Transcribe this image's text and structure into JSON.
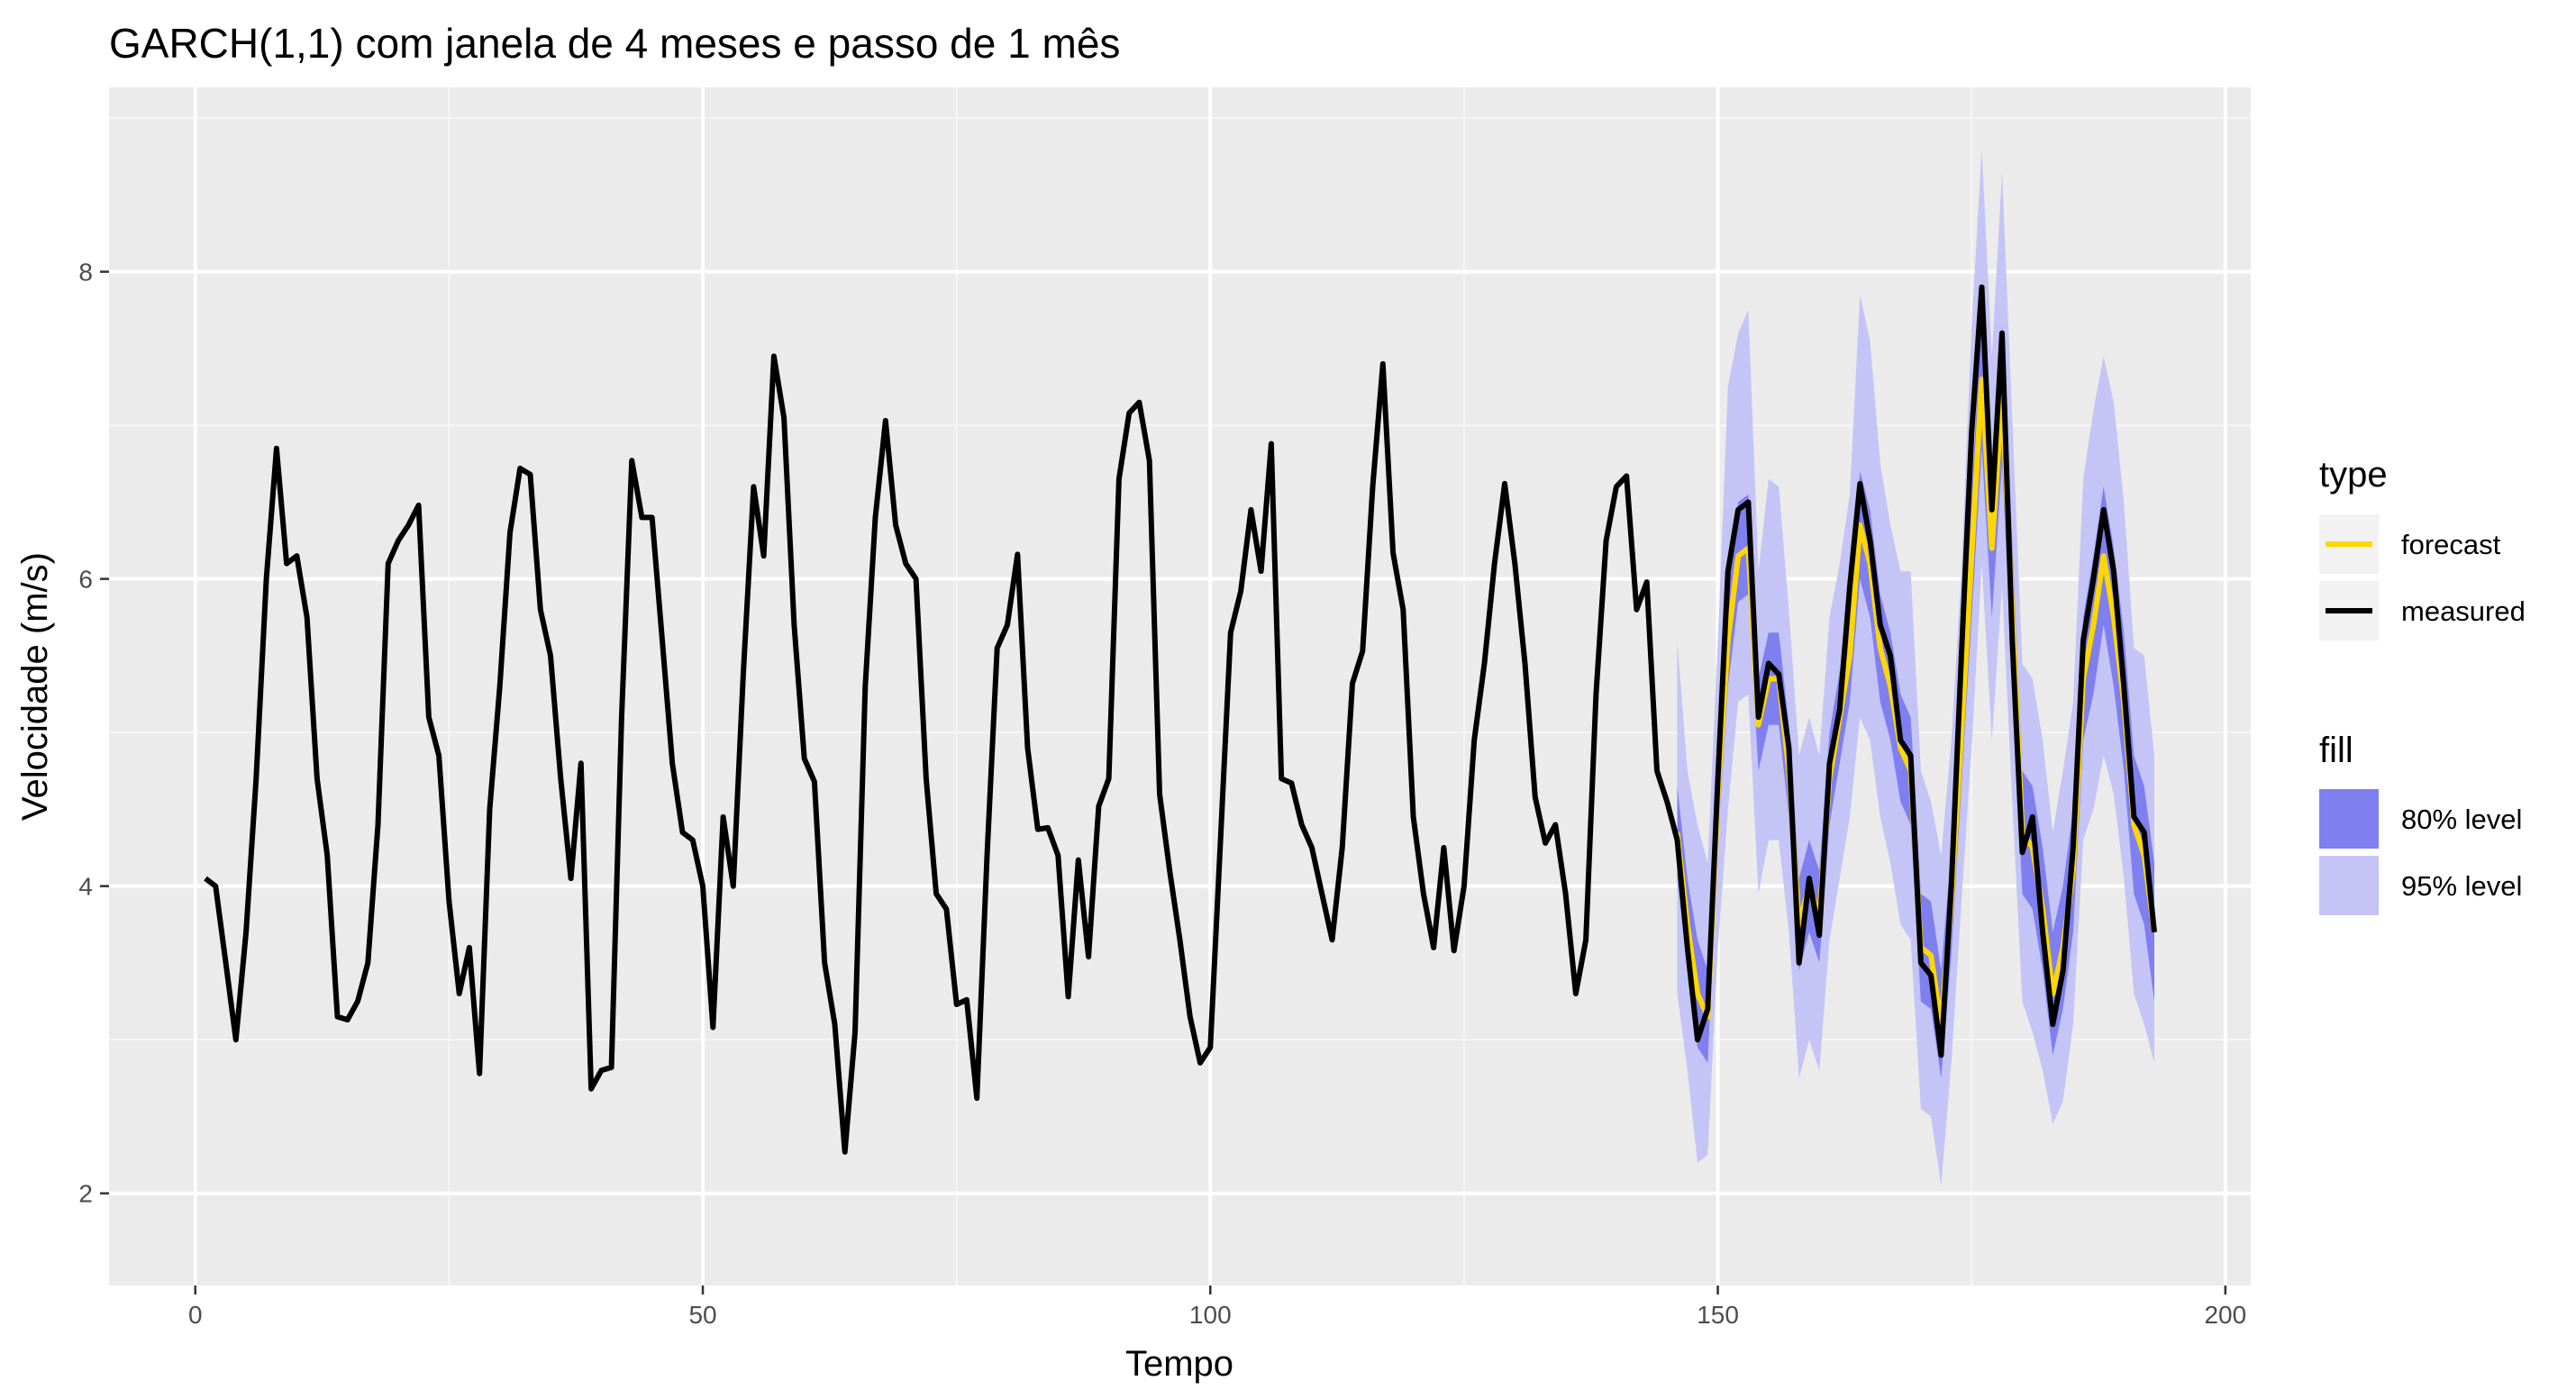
{
  "chart_data": {
    "type": "line",
    "title": "GARCH(1,1) com janela de 4 meses e passo de 1 mês",
    "xlabel": "Tempo",
    "ylabel": "Velocidade (m/s)",
    "xlim": [
      -8.5,
      202.5
    ],
    "ylim": [
      1.4,
      9.2
    ],
    "x_ticks": [
      0,
      50,
      100,
      150,
      200
    ],
    "x_tick_labels": [
      "0",
      "50",
      "100",
      "150",
      "200"
    ],
    "y_ticks": [
      2,
      4,
      6,
      8
    ],
    "y_tick_labels": [
      "2",
      "4",
      "6",
      "8"
    ],
    "grid": true,
    "colors": {
      "panel_bg": "#ebebeb",
      "grid_major": "#ffffff",
      "grid_minor": "#f5f5f5",
      "forecast": "#ffd700",
      "measured": "#000000",
      "band80": "#7f7ff0",
      "band95": "#c4c4f6",
      "legend_key_bg": "#f2f2f2"
    },
    "legend": {
      "placement": "right",
      "type_title": "type",
      "type_items": [
        "forecast",
        "measured"
      ],
      "fill_title": "fill",
      "fill_items": [
        "80% level",
        "95% level"
      ]
    },
    "measured": {
      "x": [
        1,
        2,
        3,
        4,
        5,
        6,
        7,
        8,
        9,
        10,
        11,
        12,
        13,
        14,
        15,
        16,
        17,
        18,
        19,
        20,
        21,
        22,
        23,
        24,
        25,
        26,
        27,
        28,
        29,
        30,
        31,
        32,
        33,
        34,
        35,
        36,
        37,
        38,
        39,
        40,
        41,
        42,
        43,
        44,
        45,
        46,
        47,
        48,
        49,
        50,
        51,
        52,
        53,
        54,
        55,
        56,
        57,
        58,
        59,
        60,
        61,
        62,
        63,
        64,
        65,
        66,
        67,
        68,
        69,
        70,
        71,
        72,
        73,
        74,
        75,
        76,
        77,
        78,
        79,
        80,
        81,
        82,
        83,
        84,
        85,
        86,
        87,
        88,
        89,
        90,
        91,
        92,
        93,
        94,
        95,
        96,
        97,
        98,
        99,
        100,
        101,
        102,
        103,
        104,
        105,
        106,
        107,
        108,
        109,
        110,
        111,
        112,
        113,
        114,
        115,
        116,
        117,
        118,
        119,
        120,
        121,
        122,
        123,
        124,
        125,
        126,
        127,
        128,
        129,
        130,
        131,
        132,
        133,
        134,
        135,
        136,
        137,
        138,
        139,
        140,
        141,
        142,
        143,
        144,
        145,
        146,
        147,
        148,
        149,
        150,
        151,
        152,
        153,
        154,
        155,
        156,
        157,
        158,
        159,
        160,
        161,
        162,
        163,
        164,
        165,
        166,
        167,
        168,
        169,
        170,
        171,
        172,
        173,
        174,
        175,
        176,
        177,
        178,
        179,
        180,
        181,
        182,
        183,
        184,
        185,
        186,
        187,
        188,
        189,
        190,
        191,
        192,
        193
      ],
      "y": [
        4.05,
        4.0,
        3.5,
        3.0,
        3.7,
        4.7,
        6.0,
        6.85,
        6.1,
        6.15,
        5.75,
        4.7,
        4.2,
        3.15,
        3.13,
        3.25,
        3.5,
        4.4,
        6.1,
        6.25,
        6.35,
        6.48,
        5.1,
        4.85,
        3.9,
        3.3,
        3.6,
        2.78,
        4.5,
        5.3,
        6.3,
        6.72,
        6.68,
        5.8,
        5.5,
        4.7,
        4.05,
        4.8,
        2.68,
        2.8,
        2.82,
        5.1,
        6.77,
        6.4,
        6.4,
        5.6,
        4.8,
        4.35,
        4.3,
        4.0,
        3.08,
        4.45,
        4.0,
        5.4,
        6.6,
        6.15,
        7.45,
        7.05,
        5.7,
        4.83,
        4.68,
        3.5,
        3.1,
        2.27,
        3.05,
        5.3,
        6.4,
        7.03,
        6.35,
        6.1,
        6.0,
        4.7,
        3.95,
        3.85,
        3.23,
        3.26,
        2.62,
        4.2,
        5.55,
        5.7,
        6.16,
        4.9,
        4.37,
        4.38,
        4.2,
        3.28,
        4.17,
        3.54,
        4.52,
        4.7,
        6.65,
        7.08,
        7.15,
        6.77,
        4.6,
        4.1,
        3.65,
        3.15,
        2.85,
        2.95,
        4.3,
        5.65,
        5.92,
        6.45,
        6.05,
        6.88,
        4.7,
        4.67,
        4.4,
        4.25,
        3.95,
        3.65,
        4.25,
        5.32,
        5.53,
        6.6,
        7.4,
        6.17,
        5.8,
        4.45,
        3.95,
        3.6,
        4.25,
        3.58,
        4.0,
        4.95,
        5.45,
        6.1,
        6.62,
        6.1,
        5.45,
        4.58,
        4.28,
        4.4,
        3.95,
        3.3,
        3.65,
        5.25,
        6.25,
        6.6,
        6.67,
        5.8,
        5.98,
        4.75,
        4.55,
        4.3,
        3.6,
        3.0,
        3.2,
        4.7,
        6.05,
        6.45,
        6.5,
        5.1,
        5.45,
        5.38,
        4.9,
        3.5,
        4.05,
        3.68,
        4.8,
        5.15,
        5.95,
        6.62,
        6.25,
        5.7,
        5.5,
        4.95,
        4.85,
        3.5,
        3.42,
        2.9,
        4.0,
        5.5,
        6.95,
        7.9,
        6.45,
        7.6,
        5.6,
        4.22,
        4.45,
        3.7,
        3.1,
        3.45,
        4.25,
        5.6,
        6.0,
        6.45,
        6.05,
        5.3,
        4.45,
        4.35,
        3.7
      ]
    },
    "forecast": {
      "x": [
        146,
        147,
        148,
        149,
        150,
        151,
        152,
        153,
        154,
        155,
        156,
        157,
        158,
        159,
        160,
        161,
        162,
        163,
        164,
        165,
        166,
        167,
        168,
        169,
        170,
        171,
        172,
        173,
        174,
        175,
        176,
        177,
        178,
        179,
        180,
        181,
        182,
        183,
        184,
        185,
        186,
        187,
        188,
        189,
        190,
        191,
        192,
        193
      ],
      "y": [
        4.35,
        3.75,
        3.3,
        3.15,
        4.6,
        5.6,
        6.15,
        6.2,
        5.05,
        5.35,
        5.35,
        4.75,
        3.75,
        4.0,
        3.8,
        4.7,
        5.1,
        5.5,
        6.35,
        6.1,
        5.55,
        5.3,
        4.9,
        4.75,
        3.6,
        3.55,
        3.1,
        3.9,
        5.0,
        6.15,
        7.3,
        6.2,
        7.2,
        5.8,
        4.35,
        4.25,
        3.85,
        3.3,
        3.6,
        4.1,
        5.35,
        5.7,
        6.15,
        5.75,
        5.2,
        4.4,
        4.2,
        3.7
      ],
      "lower80": [
        4.05,
        3.45,
        2.95,
        2.85,
        4.3,
        5.3,
        5.85,
        5.9,
        4.75,
        5.05,
        5.05,
        4.45,
        3.45,
        3.7,
        3.5,
        4.4,
        4.8,
        5.2,
        6.0,
        5.75,
        5.2,
        4.95,
        4.55,
        4.4,
        3.25,
        3.2,
        2.75,
        3.55,
        4.65,
        5.75,
        6.85,
        5.75,
        6.75,
        5.35,
        3.95,
        3.85,
        3.45,
        2.9,
        3.2,
        3.7,
        4.95,
        5.25,
        5.7,
        5.3,
        4.75,
        3.95,
        3.75,
        3.25
      ],
      "upper80": [
        4.65,
        4.05,
        3.65,
        3.45,
        4.9,
        5.9,
        6.5,
        6.55,
        5.35,
        5.65,
        5.65,
        5.05,
        4.05,
        4.3,
        4.1,
        5.0,
        5.4,
        5.8,
        6.7,
        6.45,
        5.9,
        5.65,
        5.25,
        5.1,
        3.95,
        3.9,
        3.45,
        4.25,
        5.35,
        6.55,
        7.75,
        6.65,
        7.65,
        6.25,
        4.75,
        4.65,
        4.25,
        3.7,
        4.0,
        4.5,
        5.75,
        6.15,
        6.6,
        6.2,
        5.65,
        4.85,
        4.65,
        4.15
      ],
      "lower95": [
        3.3,
        2.8,
        2.2,
        2.25,
        3.6,
        4.5,
        5.2,
        5.25,
        3.95,
        4.3,
        4.3,
        3.7,
        2.75,
        3.0,
        2.8,
        3.65,
        4.05,
        4.45,
        5.1,
        4.95,
        4.45,
        4.15,
        3.75,
        3.65,
        2.55,
        2.5,
        2.05,
        2.85,
        3.9,
        4.9,
        6.1,
        4.95,
        5.95,
        4.55,
        3.25,
        3.05,
        2.8,
        2.45,
        2.6,
        3.1,
        4.3,
        4.5,
        4.85,
        4.6,
        4.05,
        3.3,
        3.1,
        2.85
      ],
      "upper95": [
        5.6,
        4.75,
        4.4,
        4.15,
        5.6,
        7.25,
        7.6,
        7.75,
        6.05,
        6.65,
        6.6,
        5.8,
        4.85,
        5.1,
        4.85,
        5.75,
        6.1,
        6.55,
        7.85,
        7.55,
        6.75,
        6.35,
        6.05,
        6.05,
        4.75,
        4.55,
        4.2,
        4.95,
        6.05,
        7.65,
        8.8,
        7.45,
        8.65,
        7.05,
        5.45,
        5.35,
        4.95,
        4.35,
        4.75,
        5.2,
        6.65,
        7.1,
        7.45,
        7.15,
        6.5,
        5.55,
        5.5,
        4.85
      ]
    }
  }
}
